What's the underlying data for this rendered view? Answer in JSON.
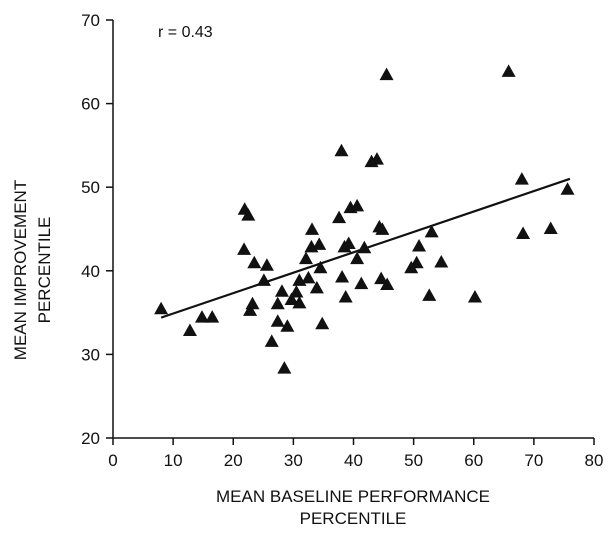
{
  "chart_data": {
    "type": "scatter",
    "annotation": "r = 0.43",
    "xlabel_lines": [
      "MEAN BASELINE PERFORMANCE",
      "PERCENTILE"
    ],
    "ylabel_lines": [
      "MEAN IMPROVEMENT",
      "PERCENTILE"
    ],
    "xlim": [
      0,
      80
    ],
    "ylim": [
      20,
      70
    ],
    "x_ticks": [
      0,
      10,
      20,
      30,
      40,
      50,
      60,
      70,
      80
    ],
    "y_ticks": [
      20,
      30,
      40,
      50,
      60,
      70
    ],
    "grid": false,
    "legend": "none",
    "marker": "triangle",
    "marker_color": "#111111",
    "trendline": {
      "x": [
        8,
        76
      ],
      "y": [
        34.4,
        51.0
      ]
    },
    "points": [
      {
        "x": 8,
        "y": 35.4
      },
      {
        "x": 12.8,
        "y": 32.8
      },
      {
        "x": 14.8,
        "y": 34.4
      },
      {
        "x": 16.5,
        "y": 34.4
      },
      {
        "x": 21.8,
        "y": 42.5
      },
      {
        "x": 21.9,
        "y": 47.3
      },
      {
        "x": 22.5,
        "y": 46.6
      },
      {
        "x": 22.8,
        "y": 35.2
      },
      {
        "x": 23.2,
        "y": 36
      },
      {
        "x": 23.5,
        "y": 40.9
      },
      {
        "x": 25.1,
        "y": 38.8
      },
      {
        "x": 25.6,
        "y": 40.6
      },
      {
        "x": 26.4,
        "y": 31.5
      },
      {
        "x": 27.4,
        "y": 33.9
      },
      {
        "x": 27.4,
        "y": 36
      },
      {
        "x": 28.1,
        "y": 37.5
      },
      {
        "x": 28.5,
        "y": 28.3
      },
      {
        "x": 29,
        "y": 33.3
      },
      {
        "x": 29.7,
        "y": 36.5
      },
      {
        "x": 30.5,
        "y": 37.4
      },
      {
        "x": 31,
        "y": 36.1
      },
      {
        "x": 31,
        "y": 38.8
      },
      {
        "x": 32.1,
        "y": 41.4
      },
      {
        "x": 32.5,
        "y": 39.1
      },
      {
        "x": 33,
        "y": 42.8
      },
      {
        "x": 33.1,
        "y": 44.9
      },
      {
        "x": 33.9,
        "y": 37.9
      },
      {
        "x": 34.3,
        "y": 43.1
      },
      {
        "x": 34.5,
        "y": 40.3
      },
      {
        "x": 34.8,
        "y": 33.6
      },
      {
        "x": 37.6,
        "y": 46.3
      },
      {
        "x": 38,
        "y": 54.3
      },
      {
        "x": 38.1,
        "y": 39.2
      },
      {
        "x": 38.5,
        "y": 42.8
      },
      {
        "x": 38.7,
        "y": 36.8
      },
      {
        "x": 39.2,
        "y": 43.2
      },
      {
        "x": 39.5,
        "y": 47.5
      },
      {
        "x": 40.6,
        "y": 41.4
      },
      {
        "x": 40.6,
        "y": 47.7
      },
      {
        "x": 41.3,
        "y": 38.4
      },
      {
        "x": 41.8,
        "y": 42.7
      },
      {
        "x": 43,
        "y": 53
      },
      {
        "x": 43.9,
        "y": 53.3
      },
      {
        "x": 44.3,
        "y": 45.2
      },
      {
        "x": 44.6,
        "y": 39
      },
      {
        "x": 44.8,
        "y": 44.9
      },
      {
        "x": 45.5,
        "y": 63.4
      },
      {
        "x": 45.6,
        "y": 38.3
      },
      {
        "x": 49.6,
        "y": 40.3
      },
      {
        "x": 50.5,
        "y": 40.9
      },
      {
        "x": 50.9,
        "y": 42.9
      },
      {
        "x": 52.6,
        "y": 37
      },
      {
        "x": 53,
        "y": 44.6
      },
      {
        "x": 54.6,
        "y": 41
      },
      {
        "x": 60.2,
        "y": 36.8
      },
      {
        "x": 65.8,
        "y": 63.8
      },
      {
        "x": 68,
        "y": 50.9
      },
      {
        "x": 68.2,
        "y": 44.4
      },
      {
        "x": 72.8,
        "y": 45
      },
      {
        "x": 75.6,
        "y": 49.7
      }
    ]
  }
}
